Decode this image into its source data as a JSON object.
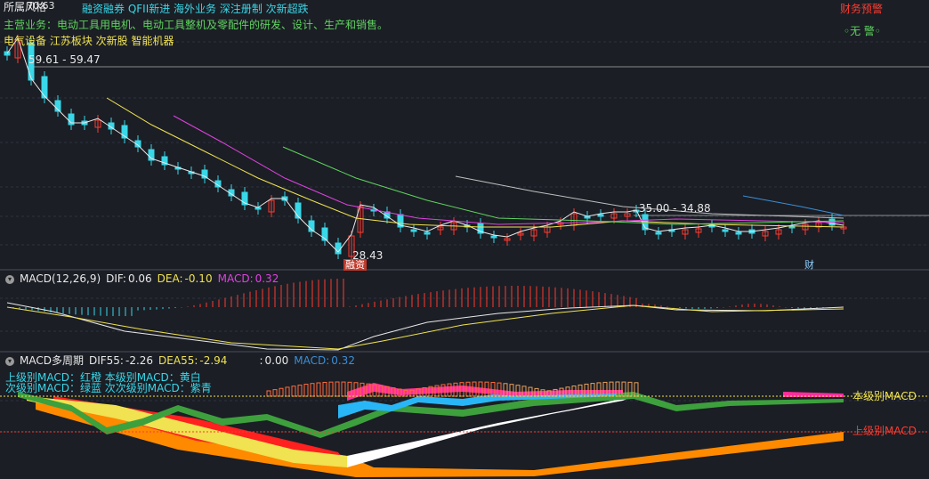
{
  "header": {
    "name_partial": "所属风格",
    "price_top": "70.63",
    "tags": "融资融券 QFII新进 海外业务 深注册制 次新超跌",
    "main_business": "主营业务：电动工具用电机、电动工具整机及零配件的研发、设计、生产和销售。",
    "concepts": "电气设备 江苏板块 次新股 智能机器",
    "risk_label": "财务预警",
    "risk_value": "◦无 警◦"
  },
  "price_panel": {
    "high_annotation": "59.61 - 59.47",
    "mid_annotation": "35.00 - 34.88",
    "low_annotation": "28.43",
    "low_badge": "融资",
    "finance_badge": "财",
    "up_color": "#ff3b30",
    "down_color": "#39d7e8"
  },
  "macd_panel": {
    "icon": "chevron-down-icon",
    "name": "MACD(12,26,9)",
    "dif_label": "DIF:",
    "dif_value": "0.06",
    "dea_label": "DEA:",
    "dea_value": "-0.10",
    "macd_label": "MACD:",
    "macd_value": "0.32"
  },
  "multi_macd_panel": {
    "icon": "chevron-down-icon",
    "name": "MACD多周期",
    "dif_label": "DIF55:",
    "dif_value": "-2.26",
    "dea_label": "DEA55:",
    "dea_value": "-2.94",
    "extra_label": ":",
    "extra_value": "0.00",
    "macd_label": "MACD:",
    "macd_value": "0.32",
    "legend_line1": "上级别MACD：红橙   本级别MACD：黄白",
    "legend_line2": "次级别MACD：绿蓝   次次级别MACD：紫青",
    "label_current": "本级别MACD",
    "label_upper": "上级别MACD"
  }
}
